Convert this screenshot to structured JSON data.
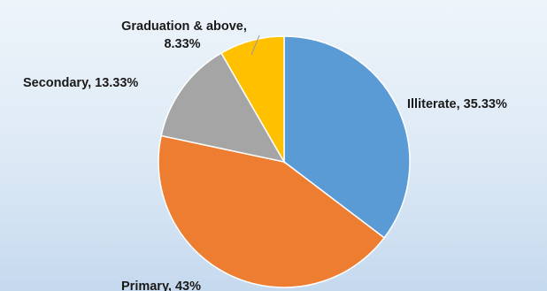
{
  "chart_data": {
    "type": "pie",
    "title": "",
    "categories": [
      "Illiterate",
      "Primary",
      "Secondary",
      "Graduation & above"
    ],
    "values": [
      35.33,
      43,
      13.33,
      8.33
    ],
    "unit": "%",
    "start": "12 o'clock",
    "direction": "clockwise",
    "legend": "none",
    "data_labels": [
      {
        "category": "Illiterate",
        "text": "Illiterate, 35.33%"
      },
      {
        "category": "Primary",
        "text": "Primary, 43%"
      },
      {
        "category": "Secondary",
        "text": "Secondary, 13.33%"
      },
      {
        "category": "Graduation & above",
        "lines": [
          "Graduation & above,",
          "8.33%"
        ]
      }
    ],
    "colors": [
      "#5b9bd5",
      "#ed7d31",
      "#a5a5a5",
      "#ffc000"
    ],
    "border_color": "#ffffff"
  }
}
